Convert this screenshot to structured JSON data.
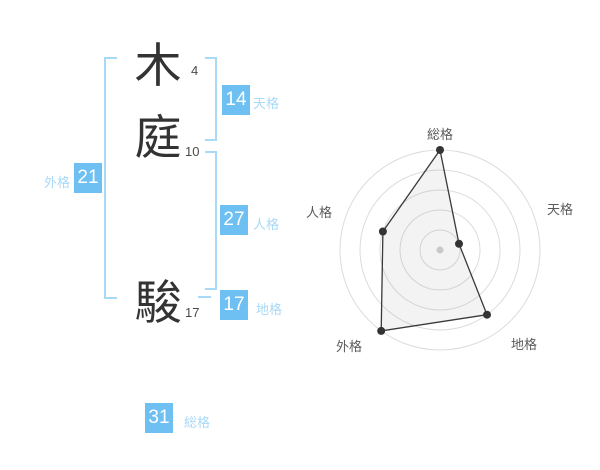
{
  "colors": {
    "chip_blue": "#6ec0f3",
    "light_blue": "#a8d9f7",
    "kanji_ink": "#333333",
    "grid_gray": "#dcdcdc",
    "series_ink": "#3a3a3a"
  },
  "name": {
    "characters": [
      {
        "char": "木",
        "strokes": "4"
      },
      {
        "char": "庭",
        "strokes": "10"
      },
      {
        "char": "駿",
        "strokes": "17"
      }
    ]
  },
  "kaku": {
    "tenkaku": {
      "label": "天格",
      "value": "14"
    },
    "jinkaku": {
      "label": "人格",
      "value": "27"
    },
    "chikaku": {
      "label": "地格",
      "value": "17"
    },
    "gaikaku": {
      "label": "外格",
      "value": "21"
    },
    "soukaku": {
      "label": "総格",
      "value": "31"
    }
  },
  "chart_data": {
    "type": "radar",
    "title": "",
    "categories": [
      "総格",
      "天格",
      "地格",
      "外格",
      "人格"
    ],
    "values": [
      5,
      1,
      4,
      5,
      3
    ],
    "max": 5,
    "rings": 5,
    "start_angle_deg": -90,
    "direction": "clockwise",
    "grid": "circular",
    "legend_position": "none"
  }
}
